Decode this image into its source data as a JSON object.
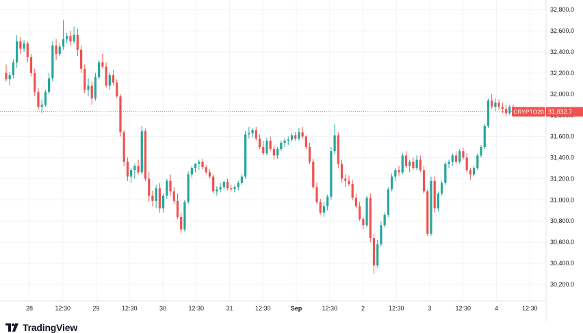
{
  "chart_data": {
    "type": "candlestick",
    "symbol": "CRYPTO20",
    "last_price_label": "31,832.7",
    "colors": {
      "up": "#26a69a",
      "down": "#ef5350",
      "price_line": "#ef5350",
      "grid": "#f0f3fa",
      "axis_text": "#131722"
    },
    "ylim": [
      30100,
      32850
    ],
    "y_ticks": [
      {
        "value": 32800,
        "label": "32,800.0"
      },
      {
        "value": 32600,
        "label": "32,600.0"
      },
      {
        "value": 32400,
        "label": "32,400.0"
      },
      {
        "value": 32200,
        "label": "32,200.0"
      },
      {
        "value": 32000,
        "label": "32,000.0"
      },
      {
        "value": 31800,
        "label": "31,800.0"
      },
      {
        "value": 31600,
        "label": "31,600.0"
      },
      {
        "value": 31400,
        "label": "31,400.0"
      },
      {
        "value": 31200,
        "label": "31,200.0"
      },
      {
        "value": 31000,
        "label": "31,000.0"
      },
      {
        "value": 30800,
        "label": "30,800.0"
      },
      {
        "value": 30600,
        "label": "30,600.0"
      },
      {
        "value": 30400,
        "label": "30,400.0"
      },
      {
        "value": 30200,
        "label": "30,200.0"
      }
    ],
    "x_ticks": [
      {
        "label": "28",
        "bold": false
      },
      {
        "label": "12:30",
        "bold": false
      },
      {
        "label": "29",
        "bold": false
      },
      {
        "label": "12:30",
        "bold": false
      },
      {
        "label": "30",
        "bold": false
      },
      {
        "label": "12:30",
        "bold": false
      },
      {
        "label": "31",
        "bold": false
      },
      {
        "label": "12:30",
        "bold": false
      },
      {
        "label": "Sep",
        "bold": true
      },
      {
        "label": "12:30",
        "bold": false
      },
      {
        "label": "2",
        "bold": false
      },
      {
        "label": "12:30",
        "bold": false
      },
      {
        "label": "3",
        "bold": false
      },
      {
        "label": "12:30",
        "bold": false
      },
      {
        "label": "4",
        "bold": false
      },
      {
        "label": "12:30",
        "bold": false
      }
    ],
    "candles": [
      [
        32200,
        32280,
        32120,
        32140
      ],
      [
        32140,
        32210,
        32080,
        32180
      ],
      [
        32180,
        32330,
        32150,
        32300
      ],
      [
        32300,
        32560,
        32250,
        32500
      ],
      [
        32500,
        32540,
        32380,
        32430
      ],
      [
        32430,
        32510,
        32400,
        32480
      ],
      [
        32480,
        32500,
        32300,
        32350
      ],
      [
        32350,
        32380,
        32170,
        32200
      ],
      [
        32200,
        32240,
        31980,
        32020
      ],
      [
        32020,
        32060,
        31850,
        31880
      ],
      [
        31880,
        31950,
        31820,
        31900
      ],
      [
        31900,
        32040,
        31880,
        32020
      ],
      [
        32020,
        32200,
        32000,
        32150
      ],
      [
        32150,
        32500,
        32120,
        32460
      ],
      [
        32460,
        32520,
        32320,
        32380
      ],
      [
        32380,
        32480,
        32360,
        32450
      ],
      [
        32450,
        32700,
        32420,
        32520
      ],
      [
        32520,
        32580,
        32480,
        32550
      ],
      [
        32550,
        32600,
        32460,
        32500
      ],
      [
        32500,
        32640,
        32480,
        32560
      ],
      [
        32560,
        32620,
        32360,
        32420
      ],
      [
        32420,
        32460,
        32200,
        32240
      ],
      [
        32240,
        32280,
        32010,
        32040
      ],
      [
        32040,
        32150,
        31980,
        32080
      ],
      [
        32080,
        32120,
        31900,
        31960
      ],
      [
        31960,
        32200,
        31940,
        32160
      ],
      [
        32160,
        32320,
        32140,
        32300
      ],
      [
        32300,
        32380,
        32240,
        32260
      ],
      [
        32260,
        32300,
        32060,
        32080
      ],
      [
        32080,
        32200,
        32040,
        32180
      ],
      [
        32180,
        32230,
        32080,
        32110
      ],
      [
        32110,
        32140,
        31960,
        31980
      ],
      [
        31980,
        32000,
        31600,
        31640
      ],
      [
        31640,
        31660,
        31320,
        31360
      ],
      [
        31360,
        31400,
        31180,
        31220
      ],
      [
        31220,
        31300,
        31160,
        31280
      ],
      [
        31280,
        31340,
        31200,
        31320
      ],
      [
        31320,
        31380,
        31240,
        31260
      ],
      [
        31260,
        31700,
        31240,
        31650
      ],
      [
        31650,
        31670,
        31180,
        31200
      ],
      [
        31200,
        31260,
        30980,
        31040
      ],
      [
        31040,
        31090,
        30940,
        30990
      ],
      [
        30990,
        31140,
        30920,
        31110
      ],
      [
        31110,
        31160,
        30880,
        30920
      ],
      [
        30920,
        31060,
        30880,
        31040
      ],
      [
        31040,
        31200,
        31010,
        31180
      ],
      [
        31180,
        31240,
        31040,
        31080
      ],
      [
        31080,
        31120,
        30960,
        30990
      ],
      [
        30990,
        31060,
        30820,
        30840
      ],
      [
        30840,
        30880,
        30690,
        30720
      ],
      [
        30720,
        31000,
        30700,
        30980
      ],
      [
        30980,
        31270,
        30960,
        31240
      ],
      [
        31240,
        31320,
        31210,
        31300
      ],
      [
        31300,
        31350,
        31260,
        31340
      ],
      [
        31340,
        31380,
        31280,
        31360
      ],
      [
        31360,
        31390,
        31290,
        31310
      ],
      [
        31310,
        31330,
        31240,
        31260
      ],
      [
        31260,
        31290,
        31200,
        31220
      ],
      [
        31220,
        31240,
        31060,
        31080
      ],
      [
        31080,
        31130,
        31040,
        31100
      ],
      [
        31100,
        31160,
        31070,
        31120
      ],
      [
        31120,
        31180,
        31100,
        31170
      ],
      [
        31170,
        31200,
        31090,
        31110
      ],
      [
        31110,
        31140,
        31080,
        31100
      ],
      [
        31100,
        31140,
        31070,
        31120
      ],
      [
        31120,
        31180,
        31090,
        31160
      ],
      [
        31160,
        31240,
        31140,
        31220
      ],
      [
        31220,
        31650,
        31200,
        31620
      ],
      [
        31620,
        31690,
        31580,
        31630
      ],
      [
        31630,
        31680,
        31590,
        31660
      ],
      [
        31660,
        31690,
        31560,
        31580
      ],
      [
        31580,
        31620,
        31480,
        31500
      ],
      [
        31500,
        31560,
        31420,
        31440
      ],
      [
        31440,
        31590,
        31420,
        31560
      ],
      [
        31560,
        31600,
        31460,
        31480
      ],
      [
        31480,
        31510,
        31380,
        31420
      ],
      [
        31420,
        31500,
        31390,
        31480
      ],
      [
        31480,
        31560,
        31460,
        31540
      ],
      [
        31540,
        31580,
        31500,
        31560
      ],
      [
        31560,
        31600,
        31520,
        31570
      ],
      [
        31570,
        31630,
        31550,
        31610
      ],
      [
        31610,
        31640,
        31560,
        31580
      ],
      [
        31580,
        31680,
        31560,
        31640
      ],
      [
        31640,
        31690,
        31580,
        31600
      ],
      [
        31600,
        31610,
        31480,
        31500
      ],
      [
        31500,
        31540,
        31340,
        31360
      ],
      [
        31360,
        31390,
        31100,
        31120
      ],
      [
        31120,
        31160,
        30960,
        30980
      ],
      [
        30980,
        31010,
        30860,
        30880
      ],
      [
        30880,
        30980,
        30840,
        30940
      ],
      [
        30940,
        31050,
        30900,
        31030
      ],
      [
        31030,
        31500,
        31000,
        31460
      ],
      [
        31460,
        31720,
        31430,
        31610
      ],
      [
        31610,
        31640,
        31300,
        31340
      ],
      [
        31340,
        31380,
        31160,
        31200
      ],
      [
        31200,
        31240,
        31120,
        31180
      ],
      [
        31180,
        31230,
        31130,
        31150
      ],
      [
        31150,
        31190,
        31000,
        31020
      ],
      [
        31020,
        31060,
        30920,
        30940
      ],
      [
        30940,
        30980,
        30800,
        30820
      ],
      [
        30820,
        30840,
        30720,
        30760
      ],
      [
        30760,
        31040,
        30740,
        31020
      ],
      [
        31020,
        31060,
        30600,
        30640
      ],
      [
        30640,
        30680,
        30300,
        30380
      ],
      [
        30380,
        30620,
        30360,
        30580
      ],
      [
        30580,
        30800,
        30560,
        30760
      ],
      [
        30760,
        30880,
        30740,
        30860
      ],
      [
        30860,
        31120,
        30840,
        31100
      ],
      [
        31100,
        31250,
        31080,
        31220
      ],
      [
        31220,
        31300,
        31180,
        31280
      ],
      [
        31280,
        31320,
        31230,
        31260
      ],
      [
        31260,
        31440,
        31240,
        31420
      ],
      [
        31420,
        31460,
        31300,
        31320
      ],
      [
        31320,
        31380,
        31260,
        31360
      ],
      [
        31360,
        31400,
        31280,
        31300
      ],
      [
        31300,
        31420,
        31280,
        31380
      ],
      [
        31380,
        31420,
        31260,
        31280
      ],
      [
        31280,
        31320,
        31060,
        31080
      ],
      [
        31080,
        31100,
        30660,
        30680
      ],
      [
        30680,
        31220,
        30660,
        31180
      ],
      [
        31180,
        31220,
        30880,
        30920
      ],
      [
        30920,
        31080,
        30890,
        31060
      ],
      [
        31060,
        31180,
        31040,
        31160
      ],
      [
        31160,
        31360,
        31140,
        31340
      ],
      [
        31340,
        31380,
        31300,
        31360
      ],
      [
        31360,
        31440,
        31320,
        31420
      ],
      [
        31420,
        31460,
        31340,
        31360
      ],
      [
        31360,
        31480,
        31340,
        31460
      ],
      [
        31460,
        31490,
        31380,
        31400
      ],
      [
        31400,
        31440,
        31260,
        31280
      ],
      [
        31280,
        31300,
        31190,
        31240
      ],
      [
        31240,
        31320,
        31220,
        31300
      ],
      [
        31300,
        31440,
        31280,
        31420
      ],
      [
        31420,
        31520,
        31400,
        31500
      ],
      [
        31500,
        31720,
        31480,
        31700
      ],
      [
        31700,
        31960,
        31680,
        31940
      ],
      [
        31940,
        32000,
        31860,
        31880
      ],
      [
        31880,
        31960,
        31840,
        31920
      ],
      [
        31920,
        31950,
        31850,
        31880
      ],
      [
        31880,
        31920,
        31820,
        31860
      ],
      [
        31860,
        31900,
        31790,
        31820
      ],
      [
        31820,
        31900,
        31800,
        31880
      ],
      [
        31880,
        31900,
        31800,
        31833
      ]
    ]
  },
  "watermark": {
    "text": "TradingView"
  }
}
